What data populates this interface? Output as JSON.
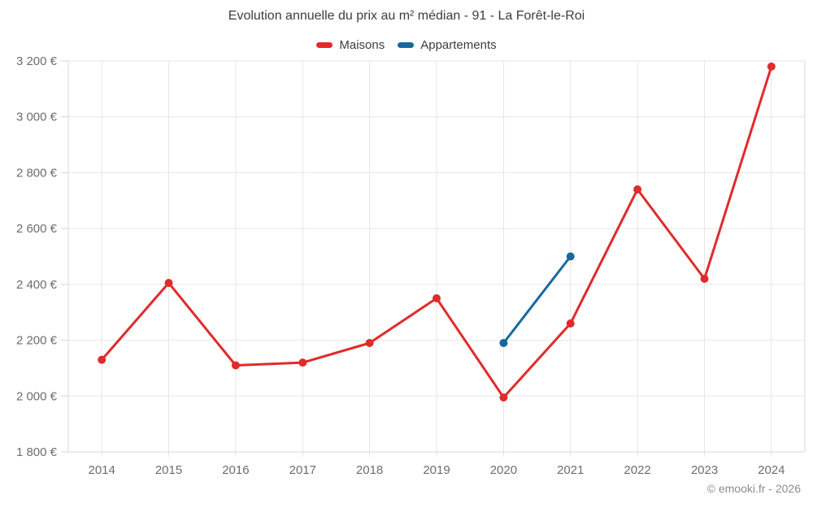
{
  "chart_data": {
    "type": "line",
    "title": "Evolution annuelle du prix au m² médian - 91 - La Forêt-le-Roi",
    "categories": [
      "2014",
      "2015",
      "2016",
      "2017",
      "2018",
      "2019",
      "2020",
      "2021",
      "2022",
      "2023",
      "2024"
    ],
    "series": [
      {
        "name": "Maisons",
        "color": "#e02b2b",
        "values": [
          2130,
          2405,
          2110,
          2120,
          2190,
          2350,
          1995,
          2260,
          2740,
          2420,
          3180
        ]
      },
      {
        "name": "Appartements",
        "color": "#15699f",
        "values": [
          null,
          null,
          null,
          null,
          null,
          null,
          2190,
          2500,
          null,
          null,
          null
        ]
      }
    ],
    "y_axis": {
      "min": 1800,
      "max": 3200,
      "tick_values": [
        1800,
        2000,
        2200,
        2400,
        2600,
        2800,
        3000,
        3200
      ],
      "tick_labels": [
        "1 800 €",
        "2 000 €",
        "2 200 €",
        "2 400 €",
        "2 600 €",
        "2 800 €",
        "3 000 €",
        "3 200 €"
      ]
    },
    "xlabel": "",
    "ylabel": "",
    "grid": true,
    "legend_position": "top",
    "copyright": "© emooki.fr - 2026"
  }
}
